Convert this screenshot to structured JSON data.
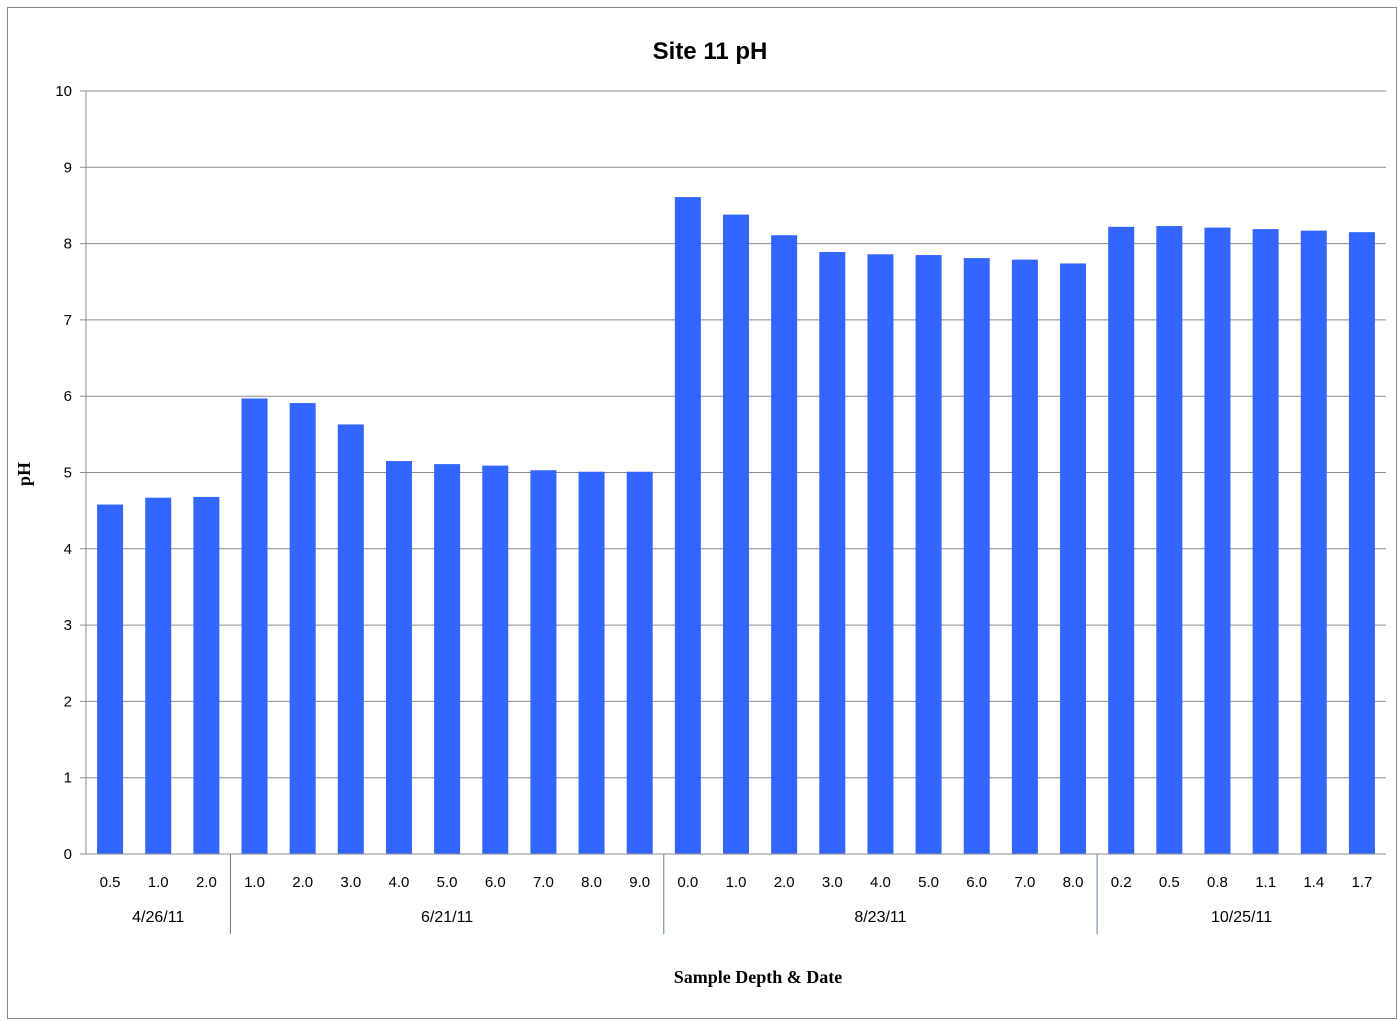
{
  "chart_data": {
    "type": "bar",
    "title": "Site 11 pH",
    "xlabel": "Sample Depth & Date",
    "ylabel": "pH",
    "ylim": [
      0,
      10
    ],
    "yticks": [
      0,
      1,
      2,
      3,
      4,
      5,
      6,
      7,
      8,
      9,
      10
    ],
    "grid": true,
    "bar_color": "#3366ff",
    "grid_color": "#8c8c8c",
    "groups": [
      {
        "label": "4/26/11",
        "categories": [
          "0.5",
          "1.0",
          "2.0"
        ],
        "values": [
          4.58,
          4.67,
          4.68
        ]
      },
      {
        "label": "6/21/11",
        "categories": [
          "1.0",
          "2.0",
          "3.0",
          "4.0",
          "5.0",
          "6.0",
          "7.0",
          "8.0",
          "9.0"
        ],
        "values": [
          5.97,
          5.91,
          5.63,
          5.15,
          5.11,
          5.09,
          5.03,
          5.01,
          5.01
        ]
      },
      {
        "label": "8/23/11",
        "categories": [
          "0.0",
          "1.0",
          "2.0",
          "3.0",
          "4.0",
          "5.0",
          "6.0",
          "7.0",
          "8.0"
        ],
        "values": [
          8.61,
          8.38,
          8.11,
          7.89,
          7.86,
          7.85,
          7.81,
          7.79,
          7.74
        ]
      },
      {
        "label": "10/25/11",
        "categories": [
          "0.2",
          "0.5",
          "0.8",
          "1.1",
          "1.4",
          "1.7"
        ],
        "values": [
          8.22,
          8.23,
          8.21,
          8.19,
          8.17,
          8.15
        ]
      }
    ]
  }
}
